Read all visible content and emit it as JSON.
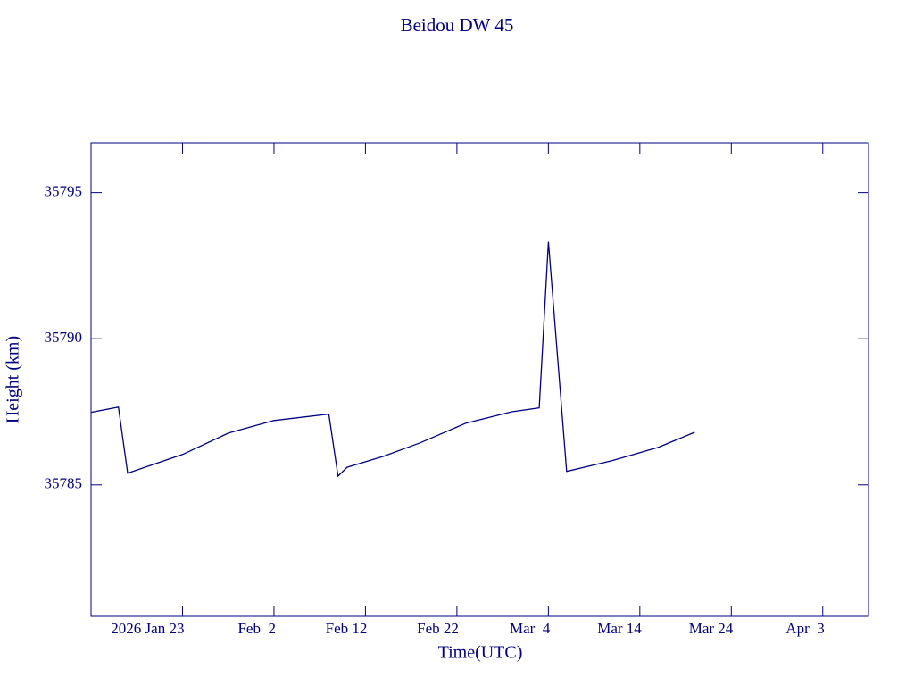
{
  "chart_data": {
    "type": "line",
    "title": "Beidou DW 45",
    "xlabel": "Time(UTC)",
    "ylabel": "Height (km)",
    "x": [
      "2026-01-13",
      "2026-01-16",
      "2026-01-17",
      "2026-01-23",
      "2026-01-28",
      "2026-02-02",
      "2026-02-08",
      "2026-02-09",
      "2026-02-10",
      "2026-02-14",
      "2026-02-18",
      "2026-02-23",
      "2026-02-28",
      "2026-03-03",
      "2026-03-04",
      "2026-03-06",
      "2026-03-11",
      "2026-03-16",
      "2026-03-20"
    ],
    "values": [
      35787.48,
      35787.66,
      35785.4,
      35786.04,
      35786.77,
      35787.2,
      35787.42,
      35785.3,
      35785.6,
      35785.98,
      35786.44,
      35787.11,
      35787.5,
      35787.63,
      35793.32,
      35785.46,
      35785.83,
      35786.28,
      35786.8
    ],
    "color": "#000080",
    "xlim": [
      "2026-01-13",
      "2026-04-08"
    ],
    "xticks": [
      {
        "value": "2026-01-23",
        "label": "2026 Jan 23"
      },
      {
        "value": "2026-02-02",
        "label": "Feb  2"
      },
      {
        "value": "2026-02-12",
        "label": "Feb 12"
      },
      {
        "value": "2026-02-22",
        "label": "Feb 22"
      },
      {
        "value": "2026-03-04",
        "label": "Mar  4"
      },
      {
        "value": "2026-03-14",
        "label": "Mar 14"
      },
      {
        "value": "2026-03-24",
        "label": "Mar 24"
      },
      {
        "value": "2026-04-03",
        "label": "Apr  3"
      }
    ],
    "ylim": [
      35780.5,
      35796.7
    ],
    "yticks": [
      35785,
      35790,
      35795
    ]
  }
}
